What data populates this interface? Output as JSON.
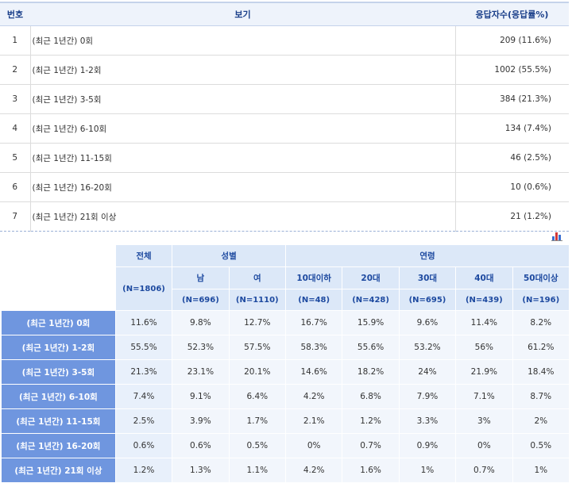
{
  "top_table": {
    "headers": {
      "num": "번호",
      "option": "보기",
      "count": "응답자수(응답률%)"
    },
    "rows": [
      {
        "num": "1",
        "option": "(최근 1년간) 0회",
        "count": "209 (11.6%)"
      },
      {
        "num": "2",
        "option": "(최근 1년간) 1-2회",
        "count": "1002 (55.5%)"
      },
      {
        "num": "3",
        "option": "(최근 1년간) 3-5회",
        "count": "384 (21.3%)"
      },
      {
        "num": "4",
        "option": "(최근 1년간) 6-10회",
        "count": "134 (7.4%)"
      },
      {
        "num": "5",
        "option": "(최근 1년간) 11-15회",
        "count": "46 (2.5%)"
      },
      {
        "num": "6",
        "option": "(최근 1년간)  16-20회",
        "count": "10 (0.6%)"
      },
      {
        "num": "7",
        "option": "(최근 1년간) 21회 이상",
        "count": "21 (1.2%)"
      }
    ]
  },
  "chart_icon": {
    "name": "bar-chart-icon",
    "colors": [
      "#3a6fd1",
      "#d13a3a",
      "#3a6fd1"
    ]
  },
  "cross_table": {
    "header": {
      "total": "전체",
      "gender": "성별",
      "age": "연령",
      "total_n": "(N=1806)",
      "columns": [
        {
          "label": "남",
          "n": "(N=696)"
        },
        {
          "label": "여",
          "n": "(N=1110)"
        },
        {
          "label": "10대이하",
          "n": "(N=48)"
        },
        {
          "label": "20대",
          "n": "(N=428)"
        },
        {
          "label": "30대",
          "n": "(N=695)"
        },
        {
          "label": "40대",
          "n": "(N=439)"
        },
        {
          "label": "50대이상",
          "n": "(N=196)"
        }
      ]
    },
    "rows": [
      {
        "label": "(최근 1년간) 0회",
        "total": "11.6%",
        "values": [
          "9.8%",
          "12.7%",
          "16.7%",
          "15.9%",
          "9.6%",
          "11.4%",
          "8.2%"
        ]
      },
      {
        "label": "(최근 1년간) 1-2회",
        "total": "55.5%",
        "values": [
          "52.3%",
          "57.5%",
          "58.3%",
          "55.6%",
          "53.2%",
          "56%",
          "61.2%"
        ]
      },
      {
        "label": "(최근 1년간) 3-5회",
        "total": "21.3%",
        "values": [
          "23.1%",
          "20.1%",
          "14.6%",
          "18.2%",
          "24%",
          "21.9%",
          "18.4%"
        ]
      },
      {
        "label": "(최근 1년간) 6-10회",
        "total": "7.4%",
        "values": [
          "9.1%",
          "6.4%",
          "4.2%",
          "6.8%",
          "7.9%",
          "7.1%",
          "8.7%"
        ]
      },
      {
        "label": "(최근 1년간) 11-15회",
        "total": "2.5%",
        "values": [
          "3.9%",
          "1.7%",
          "2.1%",
          "1.2%",
          "3.3%",
          "3%",
          "2%"
        ]
      },
      {
        "label": "(최근 1년간)  16-20회",
        "total": "0.6%",
        "values": [
          "0.6%",
          "0.5%",
          "0%",
          "0.7%",
          "0.9%",
          "0%",
          "0.5%"
        ]
      },
      {
        "label": "(최근 1년간) 21회 이상",
        "total": "1.2%",
        "values": [
          "1.3%",
          "1.1%",
          "4.2%",
          "1.6%",
          "1%",
          "0.7%",
          "1%"
        ]
      }
    ]
  }
}
